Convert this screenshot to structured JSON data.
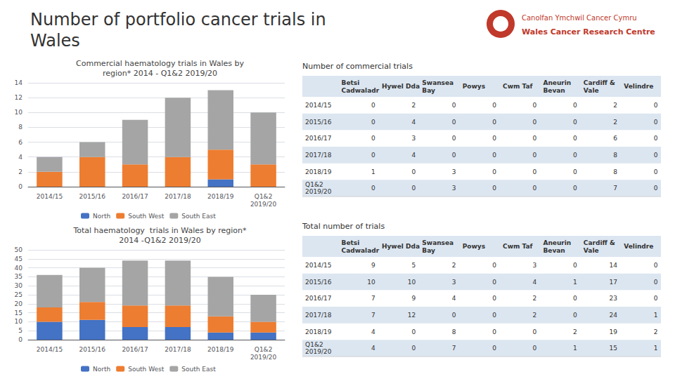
{
  "title": "Number of portfolio cancer trials in\nWales",
  "annotations": [
    {
      "text": "Canolfan Ymchwil Cancer Cymru",
      "color": "#c0392b"
    },
    {
      "text": "Wales Cancer Research Centre",
      "color": "#c0392b"
    }
  ],
  "chart_data": [
    {
      "type": "bar",
      "title": "Commercial haematology trials in Wales by\nregion* 2014 - Q1&2 2019/20",
      "categories": [
        "2014/15",
        "2015/16",
        "2016/17",
        "2017/18",
        "2018/19",
        "Q1&2\n2019/20"
      ],
      "series": [
        {
          "name": "North",
          "color": "#4472c4",
          "values": [
            0,
            0,
            0,
            0,
            1,
            0
          ]
        },
        {
          "name": "South West",
          "color": "#ed7d31",
          "values": [
            2,
            4,
            3,
            4,
            4,
            3
          ]
        },
        {
          "name": "South East",
          "color": "#a5a5a5",
          "values": [
            2,
            2,
            6,
            8,
            8,
            7
          ]
        }
      ],
      "stacked": true,
      "ylim": [
        0,
        14
      ],
      "yticks": [
        0,
        2,
        4,
        6,
        8,
        10,
        12,
        14
      ],
      "grid": true,
      "legend": "bottom"
    },
    {
      "type": "bar",
      "title": "Total haematology  trials in Wales by region*\n2014 -Q1&2 2019/20",
      "categories": [
        "2014/15",
        "2015/16",
        "2016/17",
        "2017/18",
        "2018/19",
        "Q1&2\n2019/20"
      ],
      "series": [
        {
          "name": "North",
          "color": "#4472c4",
          "values": [
            10,
            11,
            7,
            7,
            4,
            4
          ]
        },
        {
          "name": "South West",
          "color": "#ed7d31",
          "values": [
            8,
            10,
            12,
            12,
            9,
            6
          ]
        },
        {
          "name": "South East",
          "color": "#a5a5a5",
          "values": [
            18,
            19,
            25,
            25,
            22,
            15
          ]
        }
      ],
      "stacked": true,
      "ylim": [
        0,
        50
      ],
      "yticks": [
        0,
        5,
        10,
        15,
        20,
        25,
        30,
        35,
        40,
        45,
        50
      ],
      "grid": true,
      "legend": "bottom"
    },
    {
      "type": "table",
      "title": "Number of commercial trials",
      "columns": [
        "Betsi\nCadwaladr",
        "Hywel Dda",
        "Swansea\nBay",
        "Powys",
        "Cwm Taf",
        "Aneurin\nBevan",
        "Cardiff &\nVale",
        "Velindre"
      ],
      "rows": [
        "2014/15",
        "2015/16",
        "2016/17",
        "2017/18",
        "2018/19",
        "Q1&2\n2019/20"
      ],
      "color": "#dce6f1",
      "values": [
        [
          0,
          2,
          0,
          0,
          0,
          0,
          2,
          0
        ],
        [
          0,
          4,
          0,
          0,
          0,
          0,
          2,
          0
        ],
        [
          0,
          3,
          0,
          0,
          0,
          0,
          6,
          0
        ],
        [
          0,
          4,
          0,
          0,
          0,
          0,
          8,
          0
        ],
        [
          1,
          0,
          3,
          0,
          0,
          0,
          8,
          0
        ],
        [
          0,
          0,
          3,
          0,
          0,
          0,
          7,
          0
        ]
      ]
    },
    {
      "type": "table",
      "title": "Total number of trials",
      "columns": [
        "Betsi\nCadwaladr",
        "Hywel Dda",
        "Swansea\nBay",
        "Powys",
        "Cwm Taf",
        "Aneurin\nBevan",
        "Cardiff &\nVale",
        "Velindre"
      ],
      "rows": [
        "2014/15",
        "2015/16",
        "2016/17",
        "2017/18",
        "2018/19",
        "Q1&2\n2019/20"
      ],
      "color": "#dce6f1",
      "values": [
        [
          9,
          5,
          2,
          0,
          3,
          0,
          14,
          0
        ],
        [
          10,
          10,
          3,
          0,
          4,
          1,
          17,
          0
        ],
        [
          7,
          9,
          4,
          0,
          2,
          0,
          23,
          0
        ],
        [
          7,
          12,
          0,
          0,
          2,
          0,
          24,
          1
        ],
        [
          4,
          0,
          8,
          0,
          0,
          2,
          19,
          2
        ],
        [
          4,
          0,
          7,
          0,
          0,
          1,
          15,
          1
        ]
      ]
    }
  ]
}
